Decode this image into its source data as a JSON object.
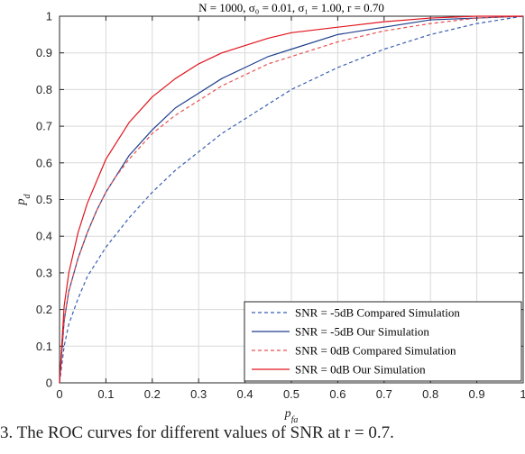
{
  "chart_data": {
    "type": "line",
    "title": "N = 1000, σ₀ = 0.01, σ₁ = 1.00, r = 0.70",
    "xlabel": "p_fa",
    "ylabel": "p_d",
    "xlim": [
      0,
      1
    ],
    "ylim": [
      0,
      1
    ],
    "xticks": [
      "0",
      "0.1",
      "0.2",
      "0.3",
      "0.4",
      "0.5",
      "0.6",
      "0.7",
      "0.8",
      "0.9",
      "1"
    ],
    "yticks": [
      "0",
      "0.1",
      "0.2",
      "0.3",
      "0.4",
      "0.5",
      "0.6",
      "0.7",
      "0.8",
      "0.9",
      "1"
    ],
    "grid": true,
    "legend_position": "bottom-right",
    "series": [
      {
        "name": "SNR = -5dB Compared Simulation",
        "color": "#3a5fb0",
        "dash": "dashed",
        "x": [
          0,
          0.01,
          0.02,
          0.04,
          0.06,
          0.08,
          0.1,
          0.15,
          0.2,
          0.25,
          0.3,
          0.35,
          0.4,
          0.45,
          0.5,
          0.6,
          0.7,
          0.8,
          0.9,
          1.0
        ],
        "y": [
          0,
          0.1,
          0.16,
          0.23,
          0.29,
          0.33,
          0.37,
          0.45,
          0.52,
          0.58,
          0.63,
          0.68,
          0.72,
          0.76,
          0.8,
          0.86,
          0.91,
          0.95,
          0.98,
          1.0
        ]
      },
      {
        "name": "SNR = -5dB Our Simulation",
        "color": "#1f3f8c",
        "dash": "solid",
        "x": [
          0,
          0.01,
          0.02,
          0.04,
          0.06,
          0.08,
          0.1,
          0.12,
          0.15,
          0.2,
          0.25,
          0.3,
          0.35,
          0.4,
          0.45,
          0.5,
          0.6,
          0.7,
          0.8,
          0.9,
          1.0
        ],
        "y": [
          0,
          0.17,
          0.25,
          0.34,
          0.41,
          0.47,
          0.52,
          0.56,
          0.62,
          0.69,
          0.75,
          0.79,
          0.83,
          0.86,
          0.89,
          0.91,
          0.95,
          0.97,
          0.99,
          0.995,
          1.0
        ]
      },
      {
        "name": "SNR = 0dB Compared Simulation",
        "color": "#e8504f",
        "dash": "dashed",
        "x": [
          0,
          0.01,
          0.02,
          0.04,
          0.06,
          0.08,
          0.1,
          0.12,
          0.15,
          0.2,
          0.25,
          0.3,
          0.35,
          0.4,
          0.45,
          0.5,
          0.6,
          0.7,
          0.8,
          0.9,
          1.0
        ],
        "y": [
          0,
          0.17,
          0.25,
          0.34,
          0.41,
          0.47,
          0.52,
          0.56,
          0.61,
          0.68,
          0.73,
          0.77,
          0.81,
          0.84,
          0.87,
          0.89,
          0.93,
          0.96,
          0.98,
          0.995,
          1.0
        ]
      },
      {
        "name": "SNR = 0dB Our Simulation",
        "color": "#e0141e",
        "dash": "solid",
        "x": [
          0,
          0.01,
          0.02,
          0.04,
          0.06,
          0.08,
          0.1,
          0.12,
          0.15,
          0.2,
          0.25,
          0.3,
          0.35,
          0.4,
          0.45,
          0.5,
          0.6,
          0.7,
          0.8,
          0.9,
          1.0
        ],
        "y": [
          0,
          0.21,
          0.3,
          0.41,
          0.49,
          0.55,
          0.61,
          0.65,
          0.71,
          0.78,
          0.83,
          0.87,
          0.9,
          0.92,
          0.94,
          0.955,
          0.97,
          0.985,
          0.995,
          1.0,
          1.0
        ]
      }
    ]
  },
  "caption": "3.   The ROC curves for different values of SNR at r = 0.7."
}
